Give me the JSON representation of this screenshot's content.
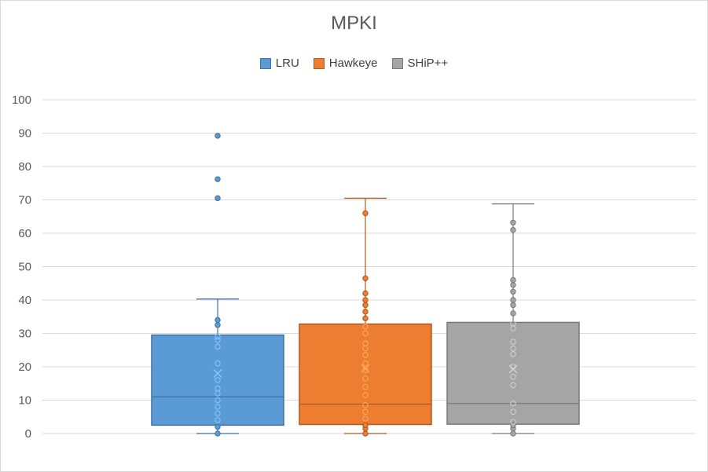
{
  "chart_data": {
    "type": "box",
    "title": "MPKI",
    "xlabel": "",
    "ylabel": "",
    "ylim": [
      0,
      100
    ],
    "yticks": [
      0,
      10,
      20,
      30,
      40,
      50,
      60,
      70,
      80,
      90,
      100
    ],
    "grid": true,
    "legend_position": "top",
    "series": [
      {
        "name": "LRU",
        "color": "#5b9bd5",
        "border": "#41719c",
        "q1": 2.5,
        "median": 11,
        "q3": 29.5,
        "mean": 18,
        "whisker_low": 0,
        "whisker_high": 40.3,
        "points": [
          0,
          2,
          4,
          6,
          8,
          10,
          12,
          13.5,
          16,
          21,
          26,
          28,
          29,
          32.5,
          34
        ],
        "outliers": [
          70.5,
          76.2,
          89.2
        ]
      },
      {
        "name": "Hawkeye",
        "color": "#ed7d31",
        "border": "#ae5a21",
        "q1": 2.7,
        "median": 8.8,
        "q3": 32.8,
        "mean": 19.5,
        "whisker_low": 0,
        "whisker_high": 70.5,
        "points": [
          0,
          1.5,
          2.5,
          4.5,
          6.5,
          8.5,
          11.5,
          14,
          16.5,
          19,
          21,
          23.5,
          25.5,
          27,
          30,
          32,
          34.5,
          36.5,
          38.5,
          40,
          42,
          46.5,
          66
        ],
        "outliers": []
      },
      {
        "name": "SHiP++",
        "color": "#a5a5a5",
        "border": "#787878",
        "q1": 2.8,
        "median": 9,
        "q3": 33.3,
        "mean": 19.3,
        "whisker_low": 0,
        "whisker_high": 68.8,
        "points": [
          0,
          1.5,
          2.5,
          3.5,
          6.5,
          9,
          14.5,
          17,
          20,
          23.8,
          25.5,
          27.5,
          31.5,
          33,
          36,
          38.5,
          40,
          42.5,
          44.5,
          46,
          61,
          63.2
        ],
        "outliers": []
      }
    ]
  }
}
